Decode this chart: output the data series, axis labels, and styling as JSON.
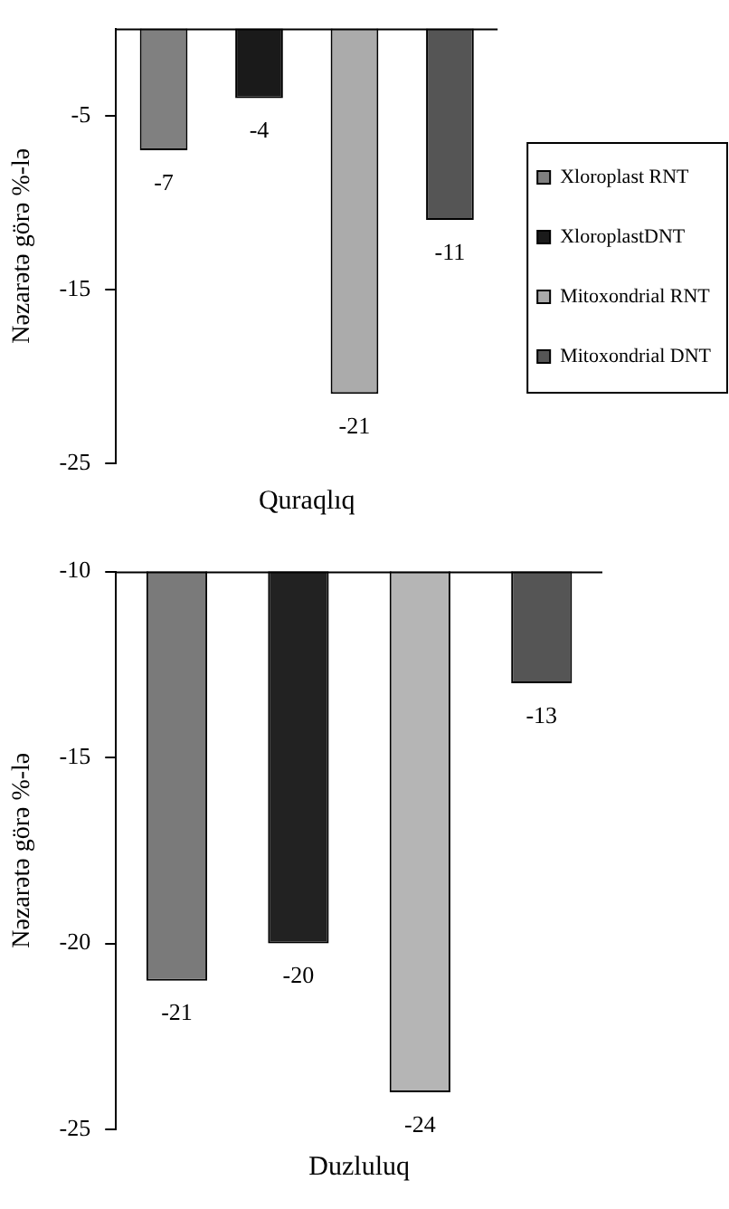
{
  "chart_data": [
    {
      "type": "bar",
      "categories": [
        null
      ],
      "xlabel": "Quraqlıq",
      "ylabel": "Nəzarətə görə %-lə",
      "ylim": [
        -25,
        0
      ],
      "yticks": [
        -5,
        -15,
        -25
      ],
      "legend": "right",
      "data_labels": true,
      "grid": false,
      "series": [
        {
          "name": "Xloroplast RNT",
          "color": "#808080",
          "values": [
            -7
          ]
        },
        {
          "name": "XloroplastDNT",
          "color": "#1a1a1a",
          "values": [
            -4
          ]
        },
        {
          "name": "Mitoxondrial RNT",
          "color": "#ababab",
          "values": [
            -21
          ]
        },
        {
          "name": "Mitoxondrial DNT",
          "color": "#555555",
          "values": [
            -11
          ]
        }
      ]
    },
    {
      "type": "bar",
      "categories": [
        null
      ],
      "xlabel": "Duzluluq",
      "ylabel": "Nəzarətə görə %-lə",
      "ylim": [
        -25,
        -10
      ],
      "yticks": [
        -10,
        -15,
        -20,
        -25
      ],
      "data_labels": true,
      "grid": false,
      "series": [
        {
          "color": "#7a7a7a",
          "values": [
            -21
          ]
        },
        {
          "color": "#222222",
          "values": [
            -20
          ]
        },
        {
          "color": "#b5b5b5",
          "values": [
            -24
          ]
        },
        {
          "color": "#555555",
          "values": [
            -13
          ]
        }
      ]
    }
  ]
}
